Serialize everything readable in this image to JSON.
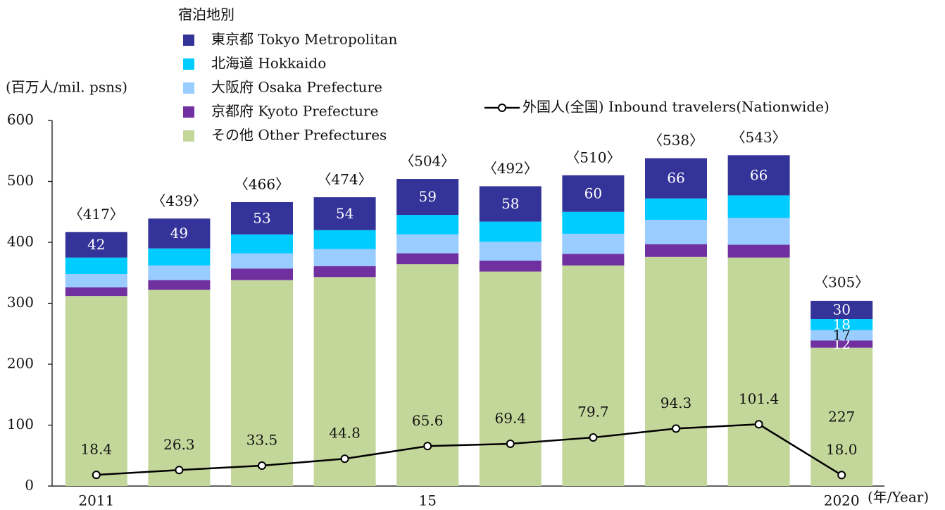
{
  "chart_data": {
    "type": "bar",
    "stacked": true,
    "legend_title": "宿泊地別",
    "y_label": "(百万人/mil. psns)",
    "x_label": "(年/Year)",
    "categories": [
      "2011",
      null,
      null,
      null,
      "15",
      null,
      null,
      null,
      null,
      "2020"
    ],
    "series": [
      {
        "name": "東京都 Tokyo Metropolitan",
        "color": "#333399",
        "values": [
          42,
          49,
          53,
          54,
          59,
          58,
          60,
          66,
          66,
          30
        ],
        "value_labels": [
          "42",
          "49",
          "53",
          "54",
          "59",
          "58",
          "60",
          "66",
          "66",
          "30"
        ]
      },
      {
        "name": "北海道 Hokkaido",
        "color": "#00ccff",
        "values": [
          27,
          28,
          31,
          31,
          32,
          33,
          36,
          35,
          37,
          18
        ],
        "value_labels": [
          null,
          null,
          null,
          null,
          null,
          null,
          null,
          null,
          null,
          "18"
        ]
      },
      {
        "name": "大阪府 Osaka Prefecture",
        "color": "#99ccff",
        "values": [
          22,
          24,
          25,
          28,
          31,
          31,
          33,
          40,
          44,
          17
        ],
        "value_labels": [
          null,
          null,
          null,
          null,
          null,
          null,
          null,
          null,
          null,
          "17"
        ]
      },
      {
        "name": "京都府 Kyoto Prefecture",
        "color": "#7030a0",
        "values": [
          14,
          16,
          19,
          18,
          18,
          18,
          19,
          21,
          21,
          12
        ],
        "value_labels": [
          null,
          null,
          null,
          null,
          null,
          null,
          null,
          null,
          null,
          "12"
        ]
      },
      {
        "name": "その他 Other Prefectures",
        "color": "#c4d79b",
        "values": [
          312,
          322,
          338,
          343,
          364,
          352,
          362,
          376,
          375,
          227
        ],
        "value_labels": [
          null,
          null,
          null,
          null,
          null,
          null,
          null,
          null,
          null,
          "227"
        ]
      }
    ],
    "totals": [
      417,
      439,
      466,
      474,
      504,
      492,
      510,
      538,
      543,
      305
    ],
    "total_labels": [
      "〈417〉",
      "〈439〉",
      "〈466〉",
      "〈474〉",
      "〈504〉",
      "〈492〉",
      "〈510〉",
      "〈538〉",
      "〈543〉",
      "〈305〉"
    ],
    "line": {
      "name": "外国人(全国) Inbound travelers(Nationwide)",
      "color": "#000000",
      "values": [
        18.4,
        26.3,
        33.5,
        44.8,
        65.6,
        69.4,
        79.7,
        94.3,
        101.4,
        18.0
      ],
      "value_labels": [
        "18.4",
        "26.3",
        "33.5",
        "44.8",
        "65.6",
        "69.4",
        "79.7",
        "94.3",
        "101.4",
        "18.0"
      ]
    },
    "ylim": [
      0,
      600
    ],
    "yticks": [
      0,
      100,
      200,
      300,
      400,
      500,
      600
    ],
    "grid": false
  }
}
